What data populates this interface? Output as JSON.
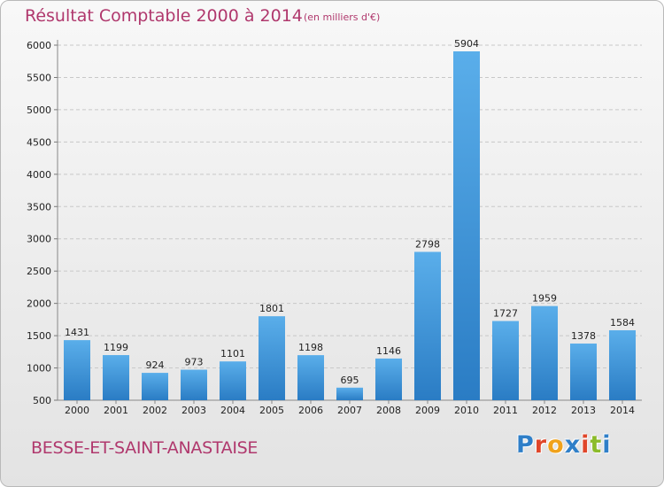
{
  "chart_data": {
    "type": "bar",
    "title": "Résultat Comptable 2000 à 2014",
    "subtitle": "(en milliers d'€)",
    "categories": [
      "2000",
      "2001",
      "2002",
      "2003",
      "2004",
      "2005",
      "2006",
      "2007",
      "2008",
      "2009",
      "2010",
      "2011",
      "2012",
      "2013",
      "2014"
    ],
    "values": [
      1431,
      1199,
      924,
      973,
      1101,
      1801,
      1198,
      695,
      1146,
      2798,
      5904,
      1727,
      1959,
      1378,
      1584
    ],
    "ylim": [
      500,
      6000
    ],
    "yticks": [
      500,
      1000,
      1500,
      2000,
      2500,
      3000,
      3500,
      4000,
      4500,
      5000,
      5500,
      6000
    ],
    "grid": true,
    "bar_color": "#3d93d8"
  },
  "footer": {
    "commune": "BESSE-ET-SAINT-ANASTAISE",
    "logo_letters": [
      "P",
      "r",
      "o",
      "x",
      "i",
      "t",
      "i"
    ],
    "logo_colors": [
      "#2f7fc8",
      "#e0462a",
      "#f0a21b",
      "#2f7fc8",
      "#e0462a",
      "#8cbb2a",
      "#2f7fc8"
    ]
  }
}
